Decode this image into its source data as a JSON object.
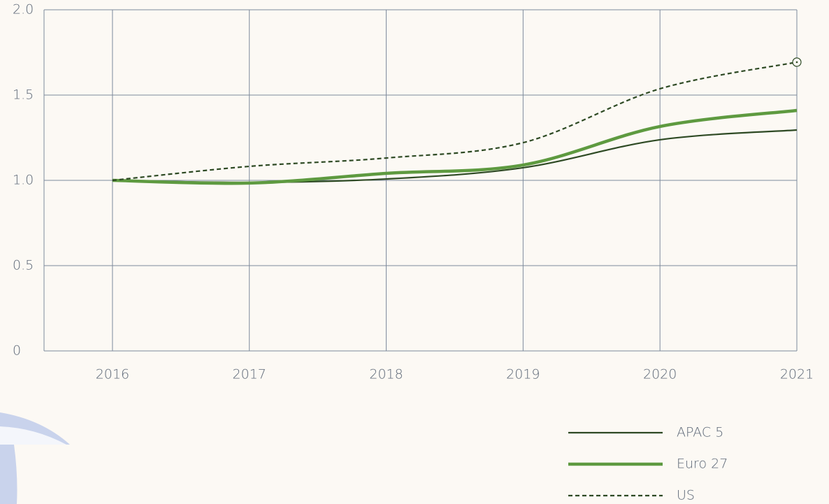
{
  "chart_data": {
    "type": "line",
    "x": [
      2016,
      2017,
      2018,
      2019,
      2020,
      2021
    ],
    "xlim": [
      2015.5,
      2021
    ],
    "xticks": [
      2016,
      2017,
      2018,
      2019,
      2020,
      2021
    ],
    "ylim": [
      0,
      2
    ],
    "yticks": [
      0,
      {
        "value": 0.5,
        "label": "0.5"
      },
      {
        "value": 1,
        "label": "1.0"
      },
      {
        "value": 1.5,
        "label": "1.5"
      },
      {
        "value": 2,
        "label": "2.0"
      }
    ],
    "grid": true,
    "legend": "bottom-right",
    "series": [
      {
        "name": "APAC 5",
        "color": "#2e4a24",
        "style": "solid",
        "values": [
          1.0,
          0.988,
          1.008,
          1.074,
          1.238,
          1.295
        ]
      },
      {
        "name": "Euro 27",
        "color": "#5e9a40",
        "style": "thick",
        "values": [
          1.0,
          0.984,
          1.041,
          1.09,
          1.316,
          1.41
        ]
      },
      {
        "name": "US",
        "color": "#2e4a24",
        "style": "dashed",
        "values": [
          1.0,
          1.082,
          1.131,
          1.221,
          1.537,
          1.693
        ]
      }
    ]
  }
}
